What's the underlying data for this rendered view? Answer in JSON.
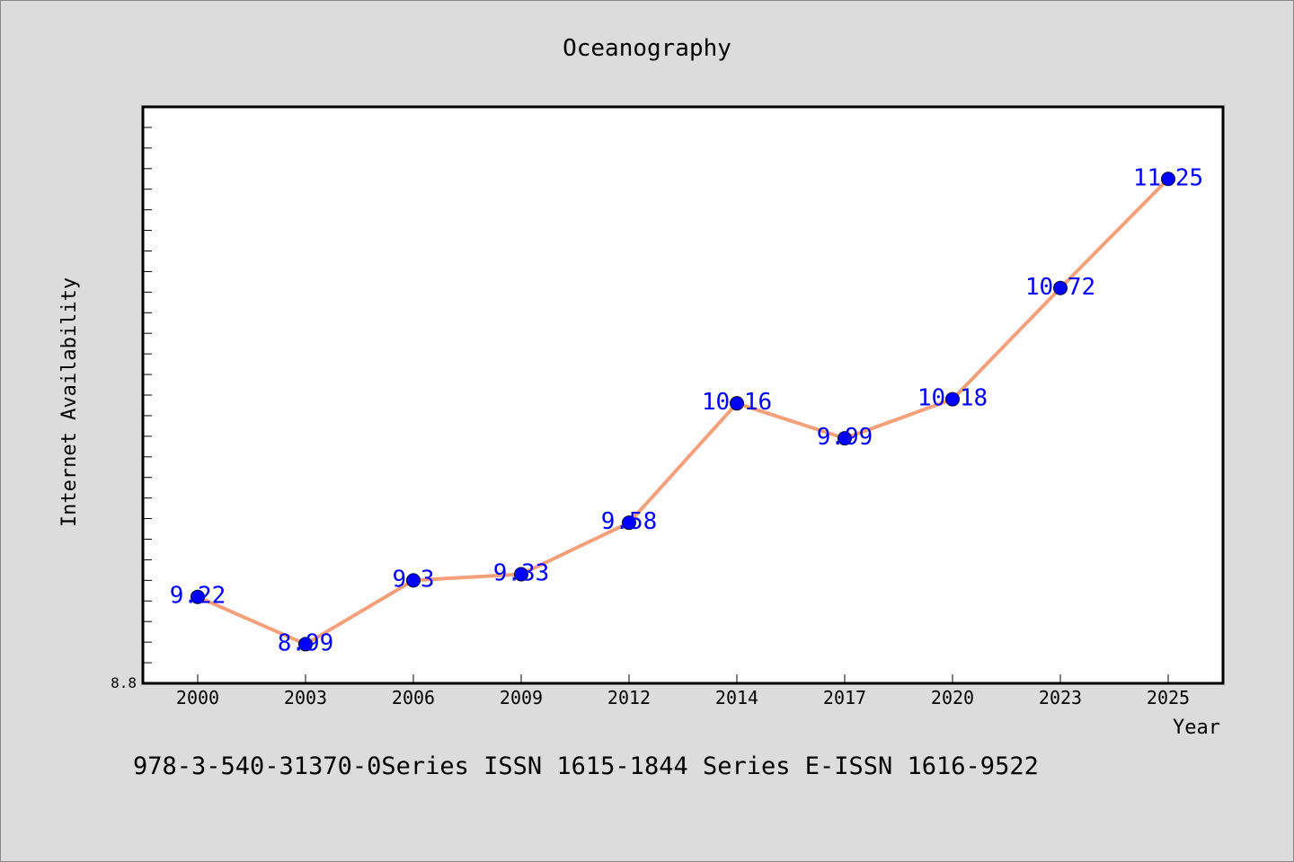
{
  "chart_data": {
    "type": "line",
    "title": "Oceanography",
    "xlabel": "Year",
    "ylabel": "Internet Availability",
    "categories": [
      "2000",
      "2003",
      "2006",
      "2009",
      "2012",
      "2014",
      "2017",
      "2020",
      "2023",
      "2025"
    ],
    "series": [
      {
        "values": [
          9.22,
          8.99,
          9.3,
          9.33,
          9.58,
          10.16,
          9.99,
          10.18,
          10.72,
          11.25
        ],
        "line_color": "#f4a07a",
        "marker_color": "#0000ff"
      }
    ],
    "data_labels": [
      "9.22",
      "8.99",
      "9.3",
      "9.33",
      "9.58",
      "10.16",
      "9.99",
      "10.18",
      "10.72",
      "11.25"
    ],
    "ylim": [
      8.8,
      11.6
    ],
    "ytick_labels": [
      "8.8"
    ],
    "grid": false,
    "legend": "none"
  },
  "footer": {
    "text": "978-3-540-31370-0Series ISSN 1615-1844 Series E-ISSN 1616-9522"
  },
  "colors": {
    "background": "#dcdcdc",
    "plot_area": "#ffffff",
    "data_label": "#0000ff"
  }
}
